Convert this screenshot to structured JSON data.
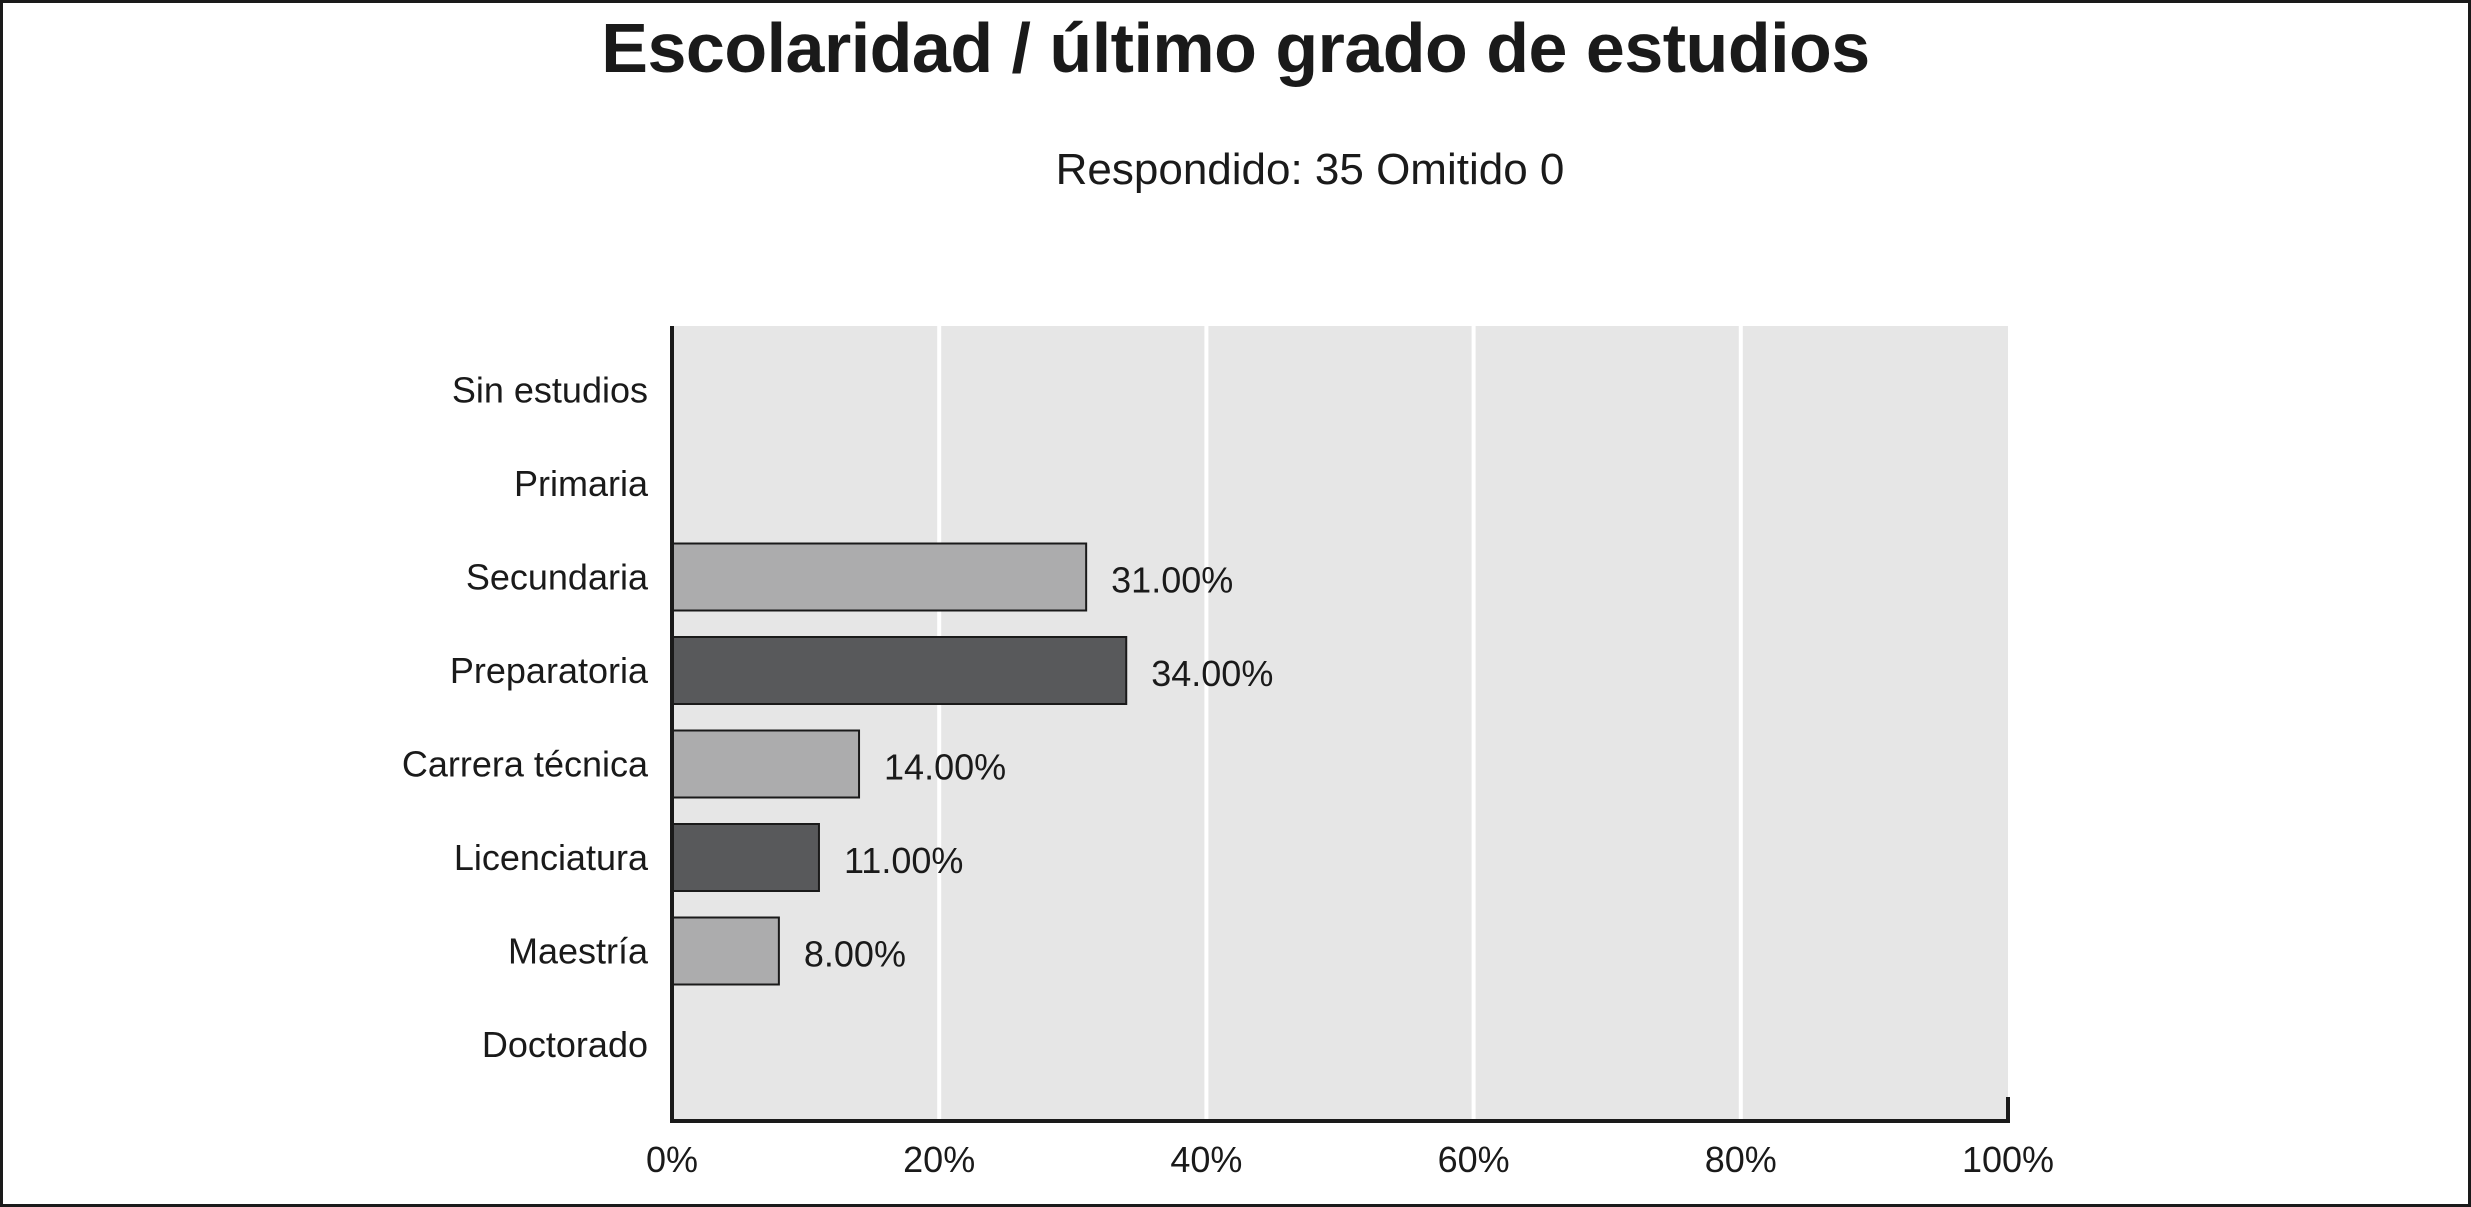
{
  "chart_data": {
    "type": "bar",
    "orientation": "horizontal",
    "title": "Escolaridad / último grado de estudios",
    "subtitle": "Respondido: 35 Omitido 0",
    "categories": [
      "Sin estudios",
      "Primaria",
      "Secundaria",
      "Preparatoria",
      "Carrera técnica",
      "Licenciatura",
      "Maestría",
      "Doctorado"
    ],
    "values": [
      0,
      0,
      31,
      34,
      14,
      11,
      8,
      0
    ],
    "value_labels": [
      "",
      "",
      "31.00%",
      "34.00%",
      "14.00%",
      "11.00%",
      "8.00%",
      ""
    ],
    "xlim": [
      0,
      100
    ],
    "xticks": [
      0,
      20,
      40,
      60,
      80,
      100
    ],
    "xtick_labels": [
      "0%",
      "20%",
      "40%",
      "60%",
      "80%",
      "100%"
    ],
    "xlabel": "",
    "ylabel": "",
    "grid": "vertical",
    "legend": "none",
    "colors": {
      "plot_background": "#e6e6e6",
      "gridline": "#ffffff",
      "bar_light": "#acacad",
      "bar_dark": "#58595b",
      "bar_outline": "#1a1a1a",
      "axis": "#1a1a1a"
    }
  }
}
